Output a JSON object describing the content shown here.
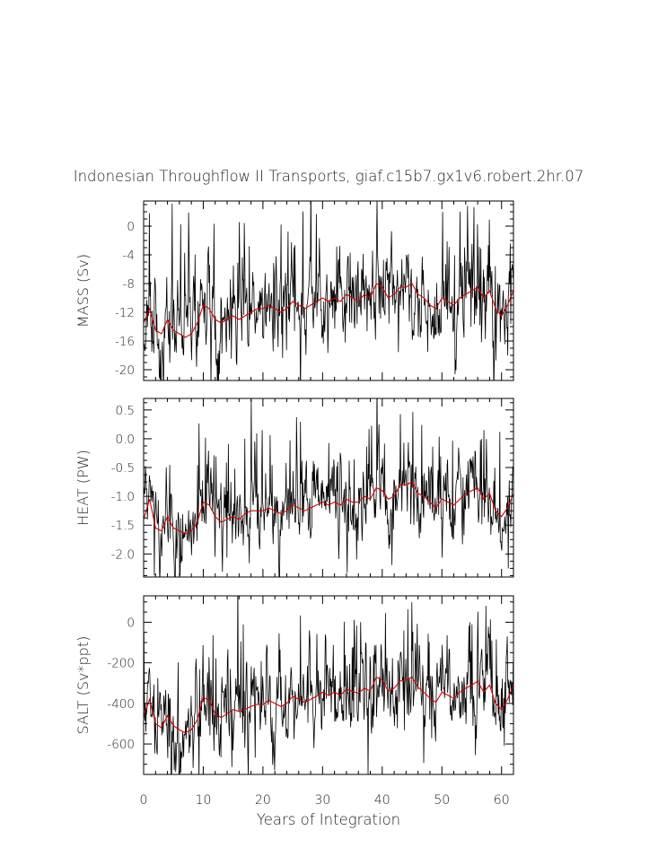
{
  "title": "Indonesian Throughflow II Transports, giaf.c15b7.gx1v6.robert.2hr.07",
  "colors": {
    "raw": "#000000",
    "smooth": "#d40000",
    "axis": "#000000"
  },
  "chart_data": {
    "type": "line",
    "xlabel": "Years of Integration",
    "xlim": [
      0,
      62
    ],
    "xticks": [
      0,
      10,
      20,
      30,
      40,
      50,
      60
    ],
    "panels": [
      {
        "name": "mass",
        "ylabel": "MASS (Sv)",
        "ylim": [
          -21.5,
          3.5
        ],
        "yticks": [
          0,
          -4,
          -8,
          -12,
          -16,
          -20
        ],
        "ytick_labels": [
          "0",
          "-4",
          "-8",
          "-12",
          "-16",
          "-20"
        ],
        "smooth": {
          "years": [
            0,
            1,
            2,
            3,
            4,
            5,
            6,
            7,
            8,
            9,
            10,
            11,
            12,
            13,
            14,
            15,
            16,
            17,
            18,
            19,
            20,
            21,
            22,
            23,
            24,
            25,
            26,
            27,
            28,
            29,
            30,
            31,
            32,
            33,
            34,
            35,
            36,
            37,
            38,
            39,
            40,
            41,
            42,
            43,
            44,
            45,
            46,
            47,
            48,
            49,
            50,
            51,
            52,
            53,
            54,
            55,
            56,
            57,
            58,
            59,
            60,
            61,
            62
          ],
          "values": [
            -13.5,
            -11.5,
            -14.5,
            -15.0,
            -13.0,
            -14.5,
            -15.0,
            -15.5,
            -15.0,
            -13.5,
            -11.0,
            -11.5,
            -13.0,
            -13.5,
            -13.0,
            -12.5,
            -13.0,
            -12.5,
            -12.0,
            -11.5,
            -11.5,
            -11.0,
            -11.5,
            -12.0,
            -11.5,
            -10.5,
            -11.0,
            -11.5,
            -11.0,
            -10.5,
            -10.0,
            -10.5,
            -10.0,
            -10.5,
            -9.5,
            -10.0,
            -10.5,
            -9.5,
            -10.0,
            -8.0,
            -8.5,
            -10.0,
            -9.5,
            -8.5,
            -8.5,
            -8.0,
            -9.5,
            -10.0,
            -11.0,
            -11.5,
            -10.0,
            -10.5,
            -11.0,
            -10.0,
            -9.5,
            -9.0,
            -8.5,
            -10.0,
            -9.0,
            -11.5,
            -12.5,
            -11.0,
            -9.0
          ]
        },
        "raw": {
          "seed": 11,
          "months": 744,
          "noise_sd": 3.2,
          "spike_prob": 0.08,
          "spike_up": 6.5,
          "spike_down": 4.5
        }
      },
      {
        "name": "heat",
        "ylabel": "HEAT (PW)",
        "ylim": [
          -2.4,
          0.7
        ],
        "yticks": [
          0.5,
          0.0,
          -0.5,
          -1.0,
          -1.5,
          -2.0
        ],
        "ytick_labels": [
          "0.5",
          "0.0",
          "-0.5",
          "-1.0",
          "-1.5",
          "-2.0"
        ],
        "smooth": {
          "years": [
            0,
            1,
            2,
            3,
            4,
            5,
            6,
            7,
            8,
            9,
            10,
            11,
            12,
            13,
            14,
            15,
            16,
            17,
            18,
            19,
            20,
            21,
            22,
            23,
            24,
            25,
            26,
            27,
            28,
            29,
            30,
            31,
            32,
            33,
            34,
            35,
            36,
            37,
            38,
            39,
            40,
            41,
            42,
            43,
            44,
            45,
            46,
            47,
            48,
            49,
            50,
            51,
            52,
            53,
            54,
            55,
            56,
            57,
            58,
            59,
            60,
            61,
            62
          ],
          "values": [
            -1.4,
            -1.05,
            -1.55,
            -1.6,
            -1.35,
            -1.55,
            -1.6,
            -1.65,
            -1.6,
            -1.45,
            -1.1,
            -1.15,
            -1.35,
            -1.45,
            -1.4,
            -1.35,
            -1.4,
            -1.3,
            -1.25,
            -1.25,
            -1.25,
            -1.2,
            -1.25,
            -1.3,
            -1.25,
            -1.15,
            -1.2,
            -1.25,
            -1.2,
            -1.15,
            -1.1,
            -1.15,
            -1.1,
            -1.15,
            -1.05,
            -1.1,
            -1.1,
            -1.0,
            -1.05,
            -0.85,
            -0.9,
            -1.05,
            -1.0,
            -0.8,
            -0.8,
            -0.75,
            -0.95,
            -1.0,
            -1.1,
            -1.2,
            -1.05,
            -1.1,
            -1.15,
            -1.05,
            -0.95,
            -0.9,
            -0.85,
            -1.05,
            -0.95,
            -1.25,
            -1.35,
            -1.2,
            -0.95
          ]
        },
        "raw": {
          "seed": 23,
          "months": 744,
          "noise_sd": 0.33,
          "spike_prob": 0.08,
          "spike_up": 0.75,
          "spike_down": 0.5
        }
      },
      {
        "name": "salt",
        "ylabel": "SALT (Sv*ppt)",
        "ylim": [
          -750,
          130
        ],
        "yticks": [
          0,
          -200,
          -400,
          -600
        ],
        "ytick_labels": [
          "0",
          "-200",
          "-400",
          "-600"
        ],
        "smooth": {
          "years": [
            0,
            1,
            2,
            3,
            4,
            5,
            6,
            7,
            8,
            9,
            10,
            11,
            12,
            13,
            14,
            15,
            16,
            17,
            18,
            19,
            20,
            21,
            22,
            23,
            24,
            25,
            26,
            27,
            28,
            29,
            30,
            31,
            32,
            33,
            34,
            35,
            36,
            37,
            38,
            39,
            40,
            41,
            42,
            43,
            44,
            45,
            46,
            47,
            48,
            49,
            50,
            51,
            52,
            53,
            54,
            55,
            56,
            57,
            58,
            59,
            60,
            61,
            62
          ],
          "values": [
            -470,
            -380,
            -500,
            -520,
            -460,
            -510,
            -530,
            -545,
            -530,
            -480,
            -370,
            -385,
            -450,
            -470,
            -450,
            -430,
            -440,
            -430,
            -415,
            -405,
            -405,
            -385,
            -400,
            -415,
            -400,
            -365,
            -380,
            -395,
            -380,
            -365,
            -345,
            -360,
            -345,
            -360,
            -330,
            -340,
            -350,
            -325,
            -340,
            -270,
            -285,
            -340,
            -325,
            -290,
            -285,
            -270,
            -320,
            -345,
            -375,
            -395,
            -345,
            -360,
            -375,
            -345,
            -325,
            -310,
            -290,
            -345,
            -310,
            -400,
            -430,
            -380,
            -310
          ]
        },
        "raw": {
          "seed": 37,
          "months": 744,
          "noise_sd": 110,
          "spike_prob": 0.08,
          "spike_up": 230,
          "spike_down": 160
        }
      }
    ]
  }
}
